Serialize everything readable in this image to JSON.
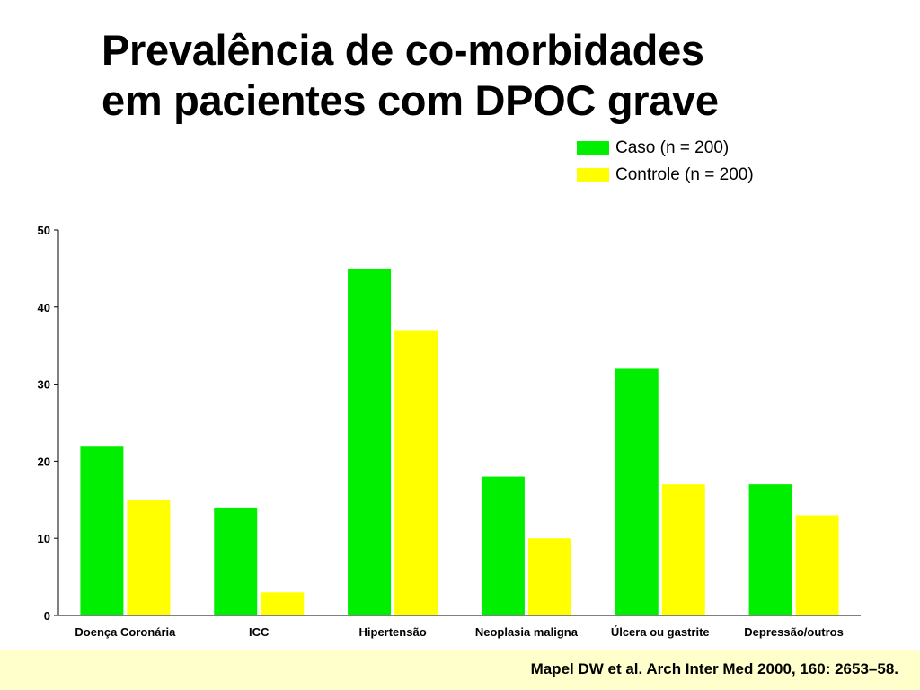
{
  "slide": {
    "title_line1": "Prevalência de co-morbidades",
    "title_line2": "em pacientes com DPOC grave"
  },
  "legend": {
    "items": [
      {
        "label": "Caso (n = 200)",
        "color": "#00ee00"
      },
      {
        "label": "Controle (n = 200)",
        "color": "#ffff00"
      }
    ]
  },
  "chart_data": {
    "type": "bar",
    "title": "",
    "xlabel": "",
    "ylabel": "",
    "categories": [
      "Doença Coronária",
      "ICC",
      "Hipertensão",
      "Neoplasia maligna",
      "Úlcera ou gastrite",
      "Depressão/outros"
    ],
    "series": [
      {
        "name": "Caso (n = 200)",
        "color": "#00ee00",
        "values": [
          22,
          14,
          45,
          18,
          32,
          17
        ]
      },
      {
        "name": "Controle (n = 200)",
        "color": "#ffff00",
        "values": [
          15,
          3,
          37,
          10,
          17,
          13
        ]
      }
    ],
    "ylim": [
      0,
      50
    ],
    "yticks": [
      0,
      10,
      20,
      30,
      40,
      50
    ],
    "grid": false,
    "legend_position": "top-right"
  },
  "footer": {
    "citation": "Mapel DW et al. Arch Inter Med 2000, 160: 2653–58."
  }
}
